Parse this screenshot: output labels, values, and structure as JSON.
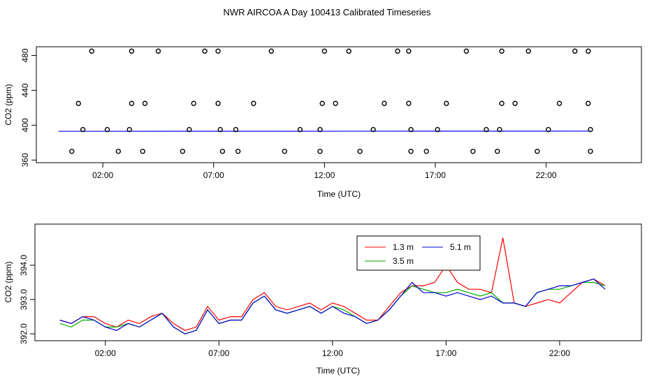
{
  "figure_title": "NWR AIRCOA A  Day 100413  Calibrated Timeseries",
  "chart_data": [
    {
      "type": "scatter",
      "name": "flags",
      "xlabel": "Time (UTC)",
      "ylabel": "CO2 (ppm)",
      "xlim": [
        -1.0,
        26.3
      ],
      "ylim": [
        357,
        490
      ],
      "xticks": [
        2,
        7,
        12,
        17,
        22
      ],
      "xtick_labels": [
        "02:00",
        "07:00",
        "12:00",
        "17:00",
        "22:00"
      ],
      "yticks": [
        360,
        400,
        440,
        480
      ],
      "ytick_labels": [
        "360",
        "400",
        "440",
        "480"
      ],
      "points": [
        {
          "x": 1.5,
          "y": 485
        },
        {
          "x": 3.3,
          "y": 485
        },
        {
          "x": 4.5,
          "y": 485
        },
        {
          "x": 6.6,
          "y": 485
        },
        {
          "x": 7.2,
          "y": 485
        },
        {
          "x": 9.6,
          "y": 485
        },
        {
          "x": 12.0,
          "y": 485
        },
        {
          "x": 13.1,
          "y": 485
        },
        {
          "x": 15.3,
          "y": 485
        },
        {
          "x": 15.8,
          "y": 485
        },
        {
          "x": 18.4,
          "y": 485
        },
        {
          "x": 20.0,
          "y": 485
        },
        {
          "x": 21.2,
          "y": 485
        },
        {
          "x": 23.3,
          "y": 485
        },
        {
          "x": 23.9,
          "y": 485
        },
        {
          "x": 0.9,
          "y": 425
        },
        {
          "x": 3.3,
          "y": 425
        },
        {
          "x": 3.9,
          "y": 425
        },
        {
          "x": 6.1,
          "y": 425
        },
        {
          "x": 7.2,
          "y": 425
        },
        {
          "x": 8.8,
          "y": 425
        },
        {
          "x": 11.9,
          "y": 425
        },
        {
          "x": 12.5,
          "y": 425
        },
        {
          "x": 14.7,
          "y": 425
        },
        {
          "x": 15.8,
          "y": 425
        },
        {
          "x": 17.5,
          "y": 425
        },
        {
          "x": 20.0,
          "y": 425
        },
        {
          "x": 20.6,
          "y": 425
        },
        {
          "x": 22.6,
          "y": 425
        },
        {
          "x": 23.9,
          "y": 425
        },
        {
          "x": 1.1,
          "y": 395
        },
        {
          "x": 2.2,
          "y": 395
        },
        {
          "x": 3.2,
          "y": 395
        },
        {
          "x": 5.9,
          "y": 395
        },
        {
          "x": 7.3,
          "y": 395
        },
        {
          "x": 8.0,
          "y": 395
        },
        {
          "x": 10.9,
          "y": 395
        },
        {
          "x": 11.8,
          "y": 395
        },
        {
          "x": 14.2,
          "y": 395
        },
        {
          "x": 15.9,
          "y": 395
        },
        {
          "x": 17.1,
          "y": 395
        },
        {
          "x": 19.3,
          "y": 395
        },
        {
          "x": 19.9,
          "y": 395
        },
        {
          "x": 22.1,
          "y": 395
        },
        {
          "x": 24.0,
          "y": 395
        },
        {
          "x": 0.6,
          "y": 370
        },
        {
          "x": 2.7,
          "y": 370
        },
        {
          "x": 3.8,
          "y": 370
        },
        {
          "x": 5.6,
          "y": 370
        },
        {
          "x": 7.4,
          "y": 370
        },
        {
          "x": 8.1,
          "y": 370
        },
        {
          "x": 10.2,
          "y": 370
        },
        {
          "x": 11.8,
          "y": 370
        },
        {
          "x": 13.6,
          "y": 370
        },
        {
          "x": 15.9,
          "y": 370
        },
        {
          "x": 16.6,
          "y": 370
        },
        {
          "x": 18.7,
          "y": 370
        },
        {
          "x": 19.8,
          "y": 370
        },
        {
          "x": 21.6,
          "y": 370
        },
        {
          "x": 24.0,
          "y": 370
        }
      ],
      "line": {
        "x": [
          0.0,
          24.0
        ],
        "y": [
          393.0,
          393.2
        ],
        "color": "#0000ff"
      }
    },
    {
      "type": "line",
      "name": "timeseries",
      "xlabel": "Time (UTC)",
      "ylabel": "CO2 (ppm)",
      "xlim": [
        -1.1,
        25.6
      ],
      "ylim": [
        391.8,
        395.2
      ],
      "xticks": [
        2,
        7,
        12,
        17,
        22
      ],
      "xtick_labels": [
        "02:00",
        "07:00",
        "12:00",
        "17:00",
        "22:00"
      ],
      "yticks": [
        392.0,
        393.0,
        394.0
      ],
      "ytick_labels": [
        "392.0",
        "393.0",
        "394.0"
      ],
      "legend": {
        "position": "top-center",
        "ncol": 2
      },
      "x": [
        0.0,
        0.5,
        1.0,
        1.5,
        2.0,
        2.5,
        3.0,
        3.5,
        4.0,
        4.5,
        5.0,
        5.5,
        6.0,
        6.5,
        7.0,
        7.5,
        8.0,
        8.5,
        9.0,
        9.5,
        10.0,
        10.5,
        11.0,
        11.5,
        12.0,
        12.5,
        13.0,
        13.5,
        14.0,
        14.5,
        15.0,
        15.5,
        16.0,
        16.5,
        17.0,
        17.5,
        18.0,
        18.5,
        19.0,
        19.5,
        20.0,
        20.5,
        21.0,
        21.5,
        22.0,
        22.5,
        23.0,
        23.5,
        24.0
      ],
      "series": [
        {
          "name": "1.3 m",
          "color": "#ff0000",
          "values": [
            392.4,
            392.3,
            392.5,
            392.5,
            392.3,
            392.2,
            392.4,
            392.3,
            392.5,
            392.6,
            392.3,
            392.1,
            392.2,
            392.8,
            392.4,
            392.5,
            392.5,
            393.0,
            393.2,
            392.8,
            392.7,
            392.8,
            392.9,
            392.7,
            392.9,
            392.8,
            392.6,
            392.4,
            392.4,
            392.8,
            393.2,
            393.4,
            393.4,
            393.5,
            394.0,
            393.5,
            393.3,
            393.3,
            393.2,
            394.8,
            392.9,
            392.8,
            392.9,
            393.0,
            392.9,
            393.2,
            393.5,
            393.6,
            393.4
          ]
        },
        {
          "name": "3.5 m",
          "color": "#00aa00",
          "values": [
            392.3,
            392.2,
            392.4,
            392.4,
            392.2,
            392.2,
            392.3,
            392.2,
            392.4,
            392.6,
            392.2,
            392.0,
            392.1,
            392.7,
            392.3,
            392.4,
            392.4,
            392.9,
            393.1,
            392.7,
            392.6,
            392.7,
            392.8,
            392.6,
            392.8,
            392.7,
            392.5,
            392.3,
            392.4,
            392.7,
            393.1,
            393.4,
            393.3,
            393.2,
            393.2,
            393.3,
            393.2,
            393.1,
            393.2,
            392.9,
            392.9,
            392.8,
            393.2,
            393.3,
            393.3,
            393.4,
            393.5,
            393.5,
            393.4
          ]
        },
        {
          "name": "5.1 m",
          "color": "#0000cc",
          "values": [
            392.4,
            392.3,
            392.5,
            392.4,
            392.2,
            392.1,
            392.3,
            392.2,
            392.4,
            392.6,
            392.2,
            392.0,
            392.1,
            392.7,
            392.3,
            392.4,
            392.4,
            392.9,
            393.1,
            392.7,
            392.6,
            392.7,
            392.8,
            392.6,
            392.8,
            392.6,
            392.5,
            392.3,
            392.4,
            392.7,
            393.1,
            393.5,
            393.2,
            393.2,
            393.1,
            393.2,
            393.1,
            393.0,
            393.1,
            392.9,
            392.9,
            392.8,
            393.2,
            393.3,
            393.4,
            393.4,
            393.5,
            393.6,
            393.3
          ]
        }
      ]
    }
  ]
}
